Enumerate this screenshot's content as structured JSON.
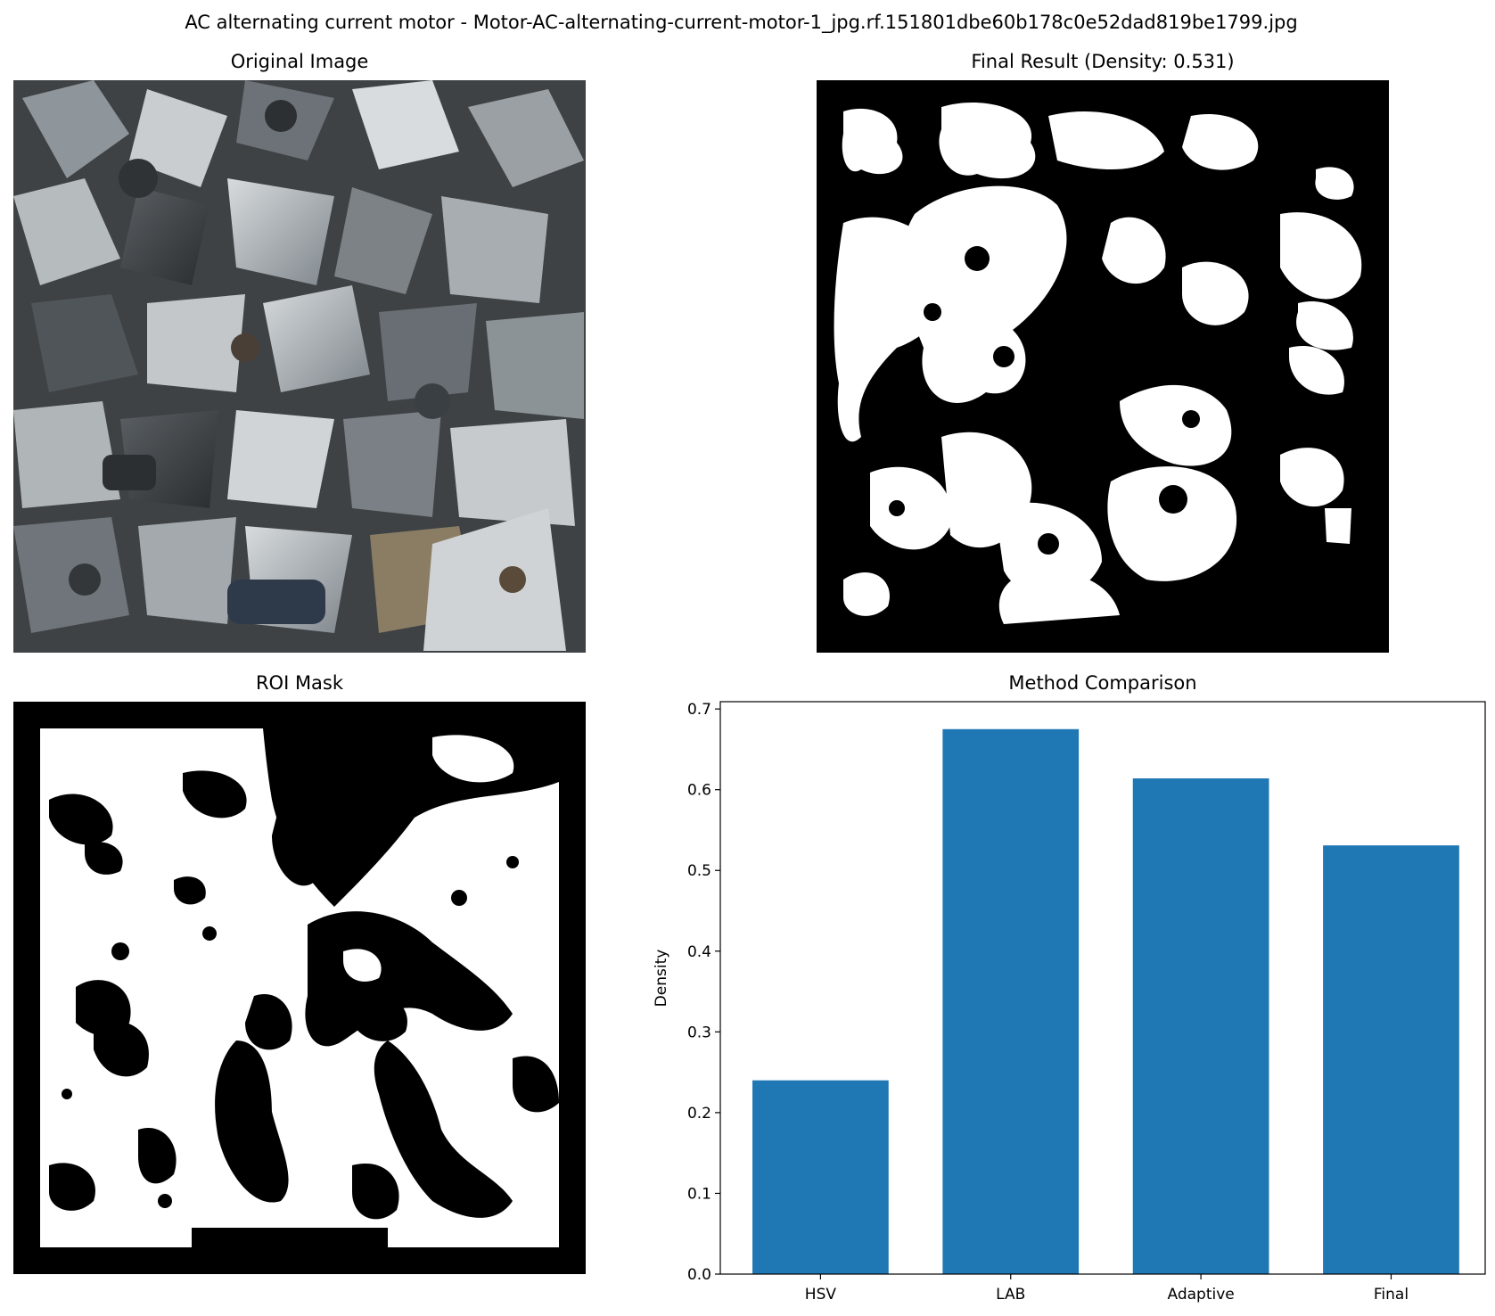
{
  "figure": {
    "title": "AC alternating current motor - Motor-AC-alternating-current-motor-1_jpg.rf.151801dbe60b178c0e52dad819be1799.jpg"
  },
  "panels": {
    "original": {
      "title": "Original Image"
    },
    "final": {
      "title": "Final Result (Density: 0.531)"
    },
    "roi": {
      "title": "ROI Mask"
    },
    "comparison": {
      "title": "Method Comparison"
    }
  },
  "colors": {
    "bar": "#1f77b4",
    "mask_fg": "#ffffff",
    "mask_bg": "#000000"
  },
  "chart_data": {
    "type": "bar",
    "title": "Method Comparison",
    "categories": [
      "HSV",
      "LAB",
      "Adaptive",
      "Final"
    ],
    "values": [
      0.24,
      0.675,
      0.614,
      0.531
    ],
    "xlabel": "",
    "ylabel": "Density",
    "ylim": [
      0,
      0.7
    ],
    "yticks": [
      "0.0",
      "0.1",
      "0.2",
      "0.3",
      "0.4",
      "0.5",
      "0.6",
      "0.7"
    ],
    "grid": false,
    "legend": "none"
  }
}
